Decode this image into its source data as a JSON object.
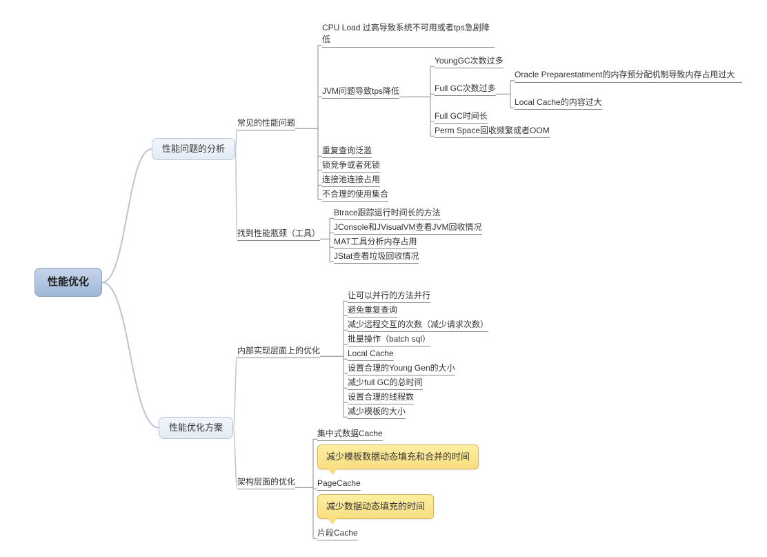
{
  "style": {
    "bg": "#ffffff",
    "text_color": "#333333",
    "underline_color": "#888888",
    "root_fill_top": "#c6d4ea",
    "root_fill_bottom": "#9fb7d8",
    "root_border": "#8aa1c2",
    "bubble_fill_top": "#f2f6fb",
    "bubble_fill_bottom": "#e3ebf4",
    "bubble_border": "#b8c5d6",
    "callout_fill_top": "#fdeea0",
    "callout_fill_bottom": "#f9de81",
    "callout_border": "#d4b55a",
    "connector_color": "#b8c5d6",
    "bracket_color": "#888888",
    "font_family": "Microsoft YaHei / PingFang SC / Arial",
    "base_fontsize": 12,
    "root_fontsize": 15,
    "bubble_fontsize": 13,
    "callout_fontsize": 13
  },
  "root": {
    "label": "性能优化"
  },
  "branches": {
    "analysis": {
      "label": "性能问题的分析"
    },
    "solutions": {
      "label": "性能优化方案"
    }
  },
  "analysis": {
    "common": {
      "label": "常见的性能问题",
      "items": {
        "cpu": "CPU Load\n过高导致系统不可用或者tps急剧降低",
        "jvm": {
          "label": "JVM问题导致tps降低",
          "children": {
            "young": "YoungGC次数过多",
            "fullcount": {
              "label": "Full GC次数过多",
              "children": {
                "oracle": "Oracle\nPreparestatment的内存预分配机制导致内存占用过大",
                "local": "Local Cache的内容过大"
              }
            },
            "fulltime": "Full GC时间长",
            "perm": "Perm Space回收频繁或者OOM"
          }
        },
        "dup": "重复查询泛滥",
        "lock": "锁竞争或者死锁",
        "pool": "连接池连接占用",
        "collection": "不合理的使用集合"
      }
    },
    "tools": {
      "label": "找到性能瓶颈（工具）",
      "items": {
        "btrace": "Btrace跟踪运行时间长的方法",
        "jconsole": "JConsole和JVisualVM查看JVM回收情况",
        "mat": "MAT工具分析内存占用",
        "jstat": "JStat查看垃圾回收情况"
      }
    }
  },
  "solutions": {
    "internal": {
      "label": "内部实现层面上的优化",
      "items": {
        "i1": "让可以并行的方法并行",
        "i2": "避免重复查询",
        "i3": "减少远程交互的次数（减少请求次数）",
        "i4": "批量操作（batch sql）",
        "i5": "Local Cache",
        "i6": "设置合理的Young Gen的大小",
        "i7": "减少full GC的总时间",
        "i8": "设置合理的线程数",
        "i9": "减少模板的大小"
      }
    },
    "arch": {
      "label": "架构层面的优化",
      "items": {
        "a1": "集中式数据Cache",
        "a1c": "减少模板数据动态填充和合并的时间",
        "a2": "PageCache",
        "a2c": "减少数据动态填充的时间",
        "a3": "片段Cache"
      }
    }
  }
}
